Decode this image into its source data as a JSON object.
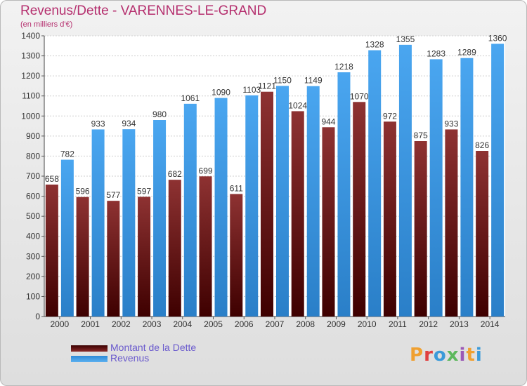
{
  "chart_data": {
    "type": "bar",
    "title": "Revenus/Dette - VARENNES-LE-GRAND",
    "subtitle": "(en milliers d'€)",
    "categories": [
      "2000",
      "2001",
      "2002",
      "2003",
      "2004",
      "2005",
      "2006",
      "2007",
      "2008",
      "2009",
      "2010",
      "2011",
      "2012",
      "2013",
      "2014"
    ],
    "series": [
      {
        "name": "Montant de la Dette",
        "color": "#7a1c1c",
        "values": [
          658,
          596,
          577,
          597,
          682,
          699,
          611,
          1121,
          1024,
          944,
          1070,
          972,
          875,
          933,
          826
        ],
        "labels": [
          "658",
          "596",
          "577",
          "597",
          "682",
          "699",
          "611",
          "1121",
          "1024",
          "944",
          "1070",
          "972",
          "875",
          "933",
          "826"
        ]
      },
      {
        "name": "Revenus",
        "color": "#3d9be9",
        "values": [
          782,
          933,
          934,
          980,
          1061,
          1090,
          1103,
          1150,
          1149,
          1218,
          1328,
          1355,
          1283,
          1289,
          1360
        ],
        "labels": [
          "782",
          "933",
          "934",
          "980",
          "1061",
          "1090",
          "1103",
          "1150",
          "1149",
          "1218",
          "1328",
          "1355",
          "1283",
          "1289",
          "1360"
        ]
      }
    ],
    "ylim": [
      0,
      1400
    ],
    "yticks": [
      0,
      100,
      200,
      300,
      400,
      500,
      600,
      700,
      800,
      900,
      1000,
      1100,
      1200,
      1300,
      1400
    ],
    "grid": true,
    "legend_position": "bottom-left"
  },
  "logo": {
    "letters": [
      "P",
      "r",
      "o",
      "x",
      "i",
      "t",
      "i"
    ]
  }
}
